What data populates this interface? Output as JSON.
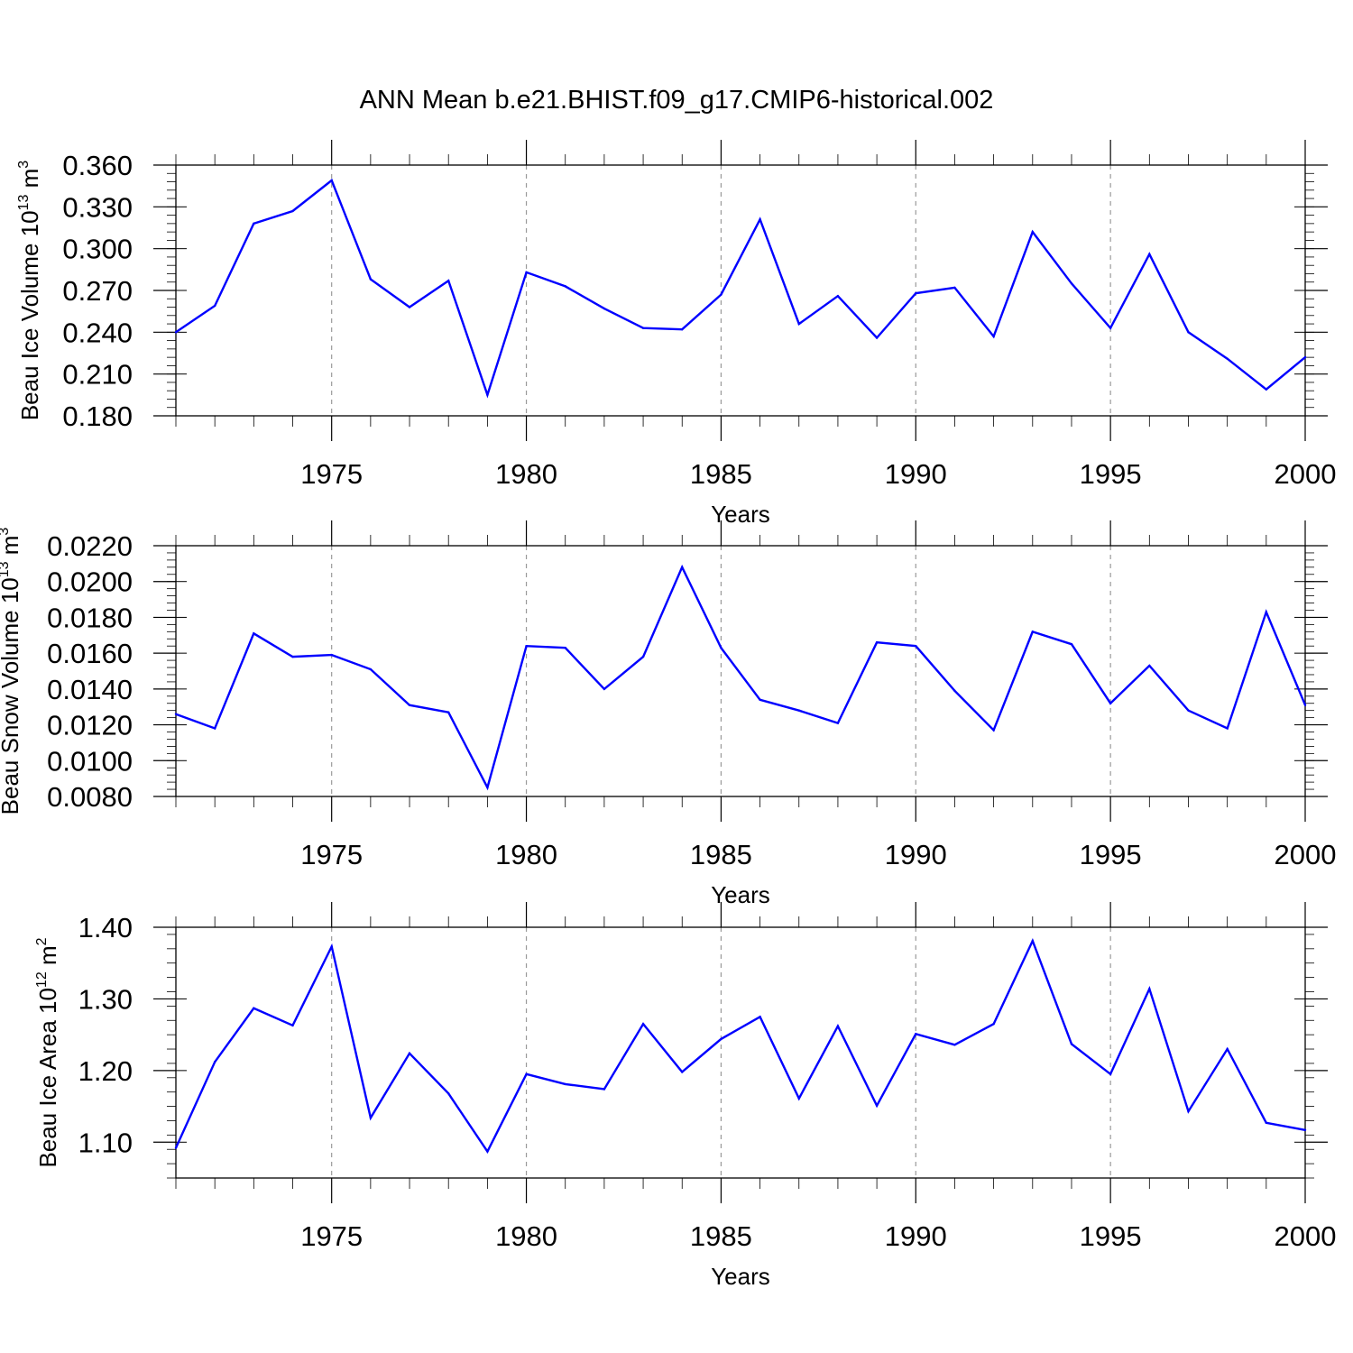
{
  "title": "ANN Mean b.e21.BHIST.f09_g17.CMIP6-historical.002",
  "colors": {
    "line": "#0000ff",
    "axis": "#000000",
    "grid": "#999999"
  },
  "chart_data": [
    {
      "type": "line",
      "xlabel": "Years",
      "ylabel_main": "Beau Ice Volume 10",
      "ylabel_exp": "13",
      "ylabel_unit": "m",
      "ylabel_unit_exp": "3",
      "xlim": [
        1971,
        2000
      ],
      "ylim": [
        0.18,
        0.36
      ],
      "xticks": [
        1975,
        1980,
        1985,
        1990,
        1995,
        2000
      ],
      "yticks": [
        0.18,
        0.21,
        0.24,
        0.27,
        0.3,
        0.33,
        0.36
      ],
      "ytick_labels": [
        "0.180",
        "0.210",
        "0.240",
        "0.270",
        "0.300",
        "0.330",
        "0.360"
      ],
      "grid": "vertical dashed at labeled years",
      "x": [
        1971,
        1972,
        1973,
        1974,
        1975,
        1976,
        1977,
        1978,
        1979,
        1980,
        1981,
        1982,
        1983,
        1984,
        1985,
        1986,
        1987,
        1988,
        1989,
        1990,
        1991,
        1992,
        1993,
        1994,
        1995,
        1996,
        1997,
        1998,
        1999,
        2000
      ],
      "values": [
        0.24,
        0.259,
        0.318,
        0.327,
        0.349,
        0.278,
        0.258,
        0.277,
        0.195,
        0.283,
        0.273,
        0.257,
        0.243,
        0.242,
        0.267,
        0.321,
        0.246,
        0.266,
        0.236,
        0.268,
        0.272,
        0.237,
        0.312,
        0.275,
        0.243,
        0.296,
        0.24,
        0.221,
        0.199,
        0.222
      ]
    },
    {
      "type": "line",
      "xlabel": "Years",
      "ylabel_main": "Beau Snow Volume 10",
      "ylabel_exp": "13",
      "ylabel_unit": "m",
      "ylabel_unit_exp": "3",
      "xlim": [
        1971,
        2000
      ],
      "ylim": [
        0.008,
        0.022
      ],
      "xticks": [
        1975,
        1980,
        1985,
        1990,
        1995,
        2000
      ],
      "yticks": [
        0.008,
        0.01,
        0.012,
        0.014,
        0.016,
        0.018,
        0.02,
        0.022
      ],
      "ytick_labels": [
        "0.0080",
        "0.0100",
        "0.0120",
        "0.0140",
        "0.0160",
        "0.0180",
        "0.0200",
        "0.0220"
      ],
      "grid": "vertical dashed at labeled years",
      "x": [
        1971,
        1972,
        1973,
        1974,
        1975,
        1976,
        1977,
        1978,
        1979,
        1980,
        1981,
        1982,
        1983,
        1984,
        1985,
        1986,
        1987,
        1988,
        1989,
        1990,
        1991,
        1992,
        1993,
        1994,
        1995,
        1996,
        1997,
        1998,
        1999,
        2000
      ],
      "values": [
        0.0126,
        0.0118,
        0.0171,
        0.0158,
        0.0159,
        0.0151,
        0.0131,
        0.0127,
        0.0085,
        0.0164,
        0.0163,
        0.014,
        0.0158,
        0.0208,
        0.0163,
        0.0134,
        0.0128,
        0.0121,
        0.0166,
        0.0164,
        0.0139,
        0.0117,
        0.0172,
        0.0165,
        0.0132,
        0.0153,
        0.0128,
        0.0118,
        0.0183,
        0.0131
      ]
    },
    {
      "type": "line",
      "xlabel": "Years",
      "ylabel_main": "Beau Ice Area 10",
      "ylabel_exp": "12",
      "ylabel_unit": "m",
      "ylabel_unit_exp": "2",
      "xlim": [
        1971,
        2000
      ],
      "ylim": [
        1.05,
        1.4
      ],
      "xticks": [
        1975,
        1980,
        1985,
        1990,
        1995,
        2000
      ],
      "yticks": [
        1.1,
        1.2,
        1.3,
        1.4
      ],
      "ytick_labels": [
        "1.10",
        "1.20",
        "1.30",
        "1.40"
      ],
      "grid": "vertical dashed at labeled years",
      "x": [
        1971,
        1972,
        1973,
        1974,
        1975,
        1976,
        1977,
        1978,
        1979,
        1980,
        1981,
        1982,
        1983,
        1984,
        1985,
        1986,
        1987,
        1988,
        1989,
        1990,
        1991,
        1992,
        1993,
        1994,
        1995,
        1996,
        1997,
        1998,
        1999,
        2000
      ],
      "values": [
        1.092,
        1.212,
        1.287,
        1.263,
        1.373,
        1.134,
        1.224,
        1.168,
        1.087,
        1.195,
        1.181,
        1.174,
        1.265,
        1.198,
        1.244,
        1.275,
        1.161,
        1.262,
        1.151,
        1.251,
        1.236,
        1.265,
        1.381,
        1.237,
        1.195,
        1.314,
        1.143,
        1.23,
        1.127,
        1.117
      ]
    }
  ]
}
